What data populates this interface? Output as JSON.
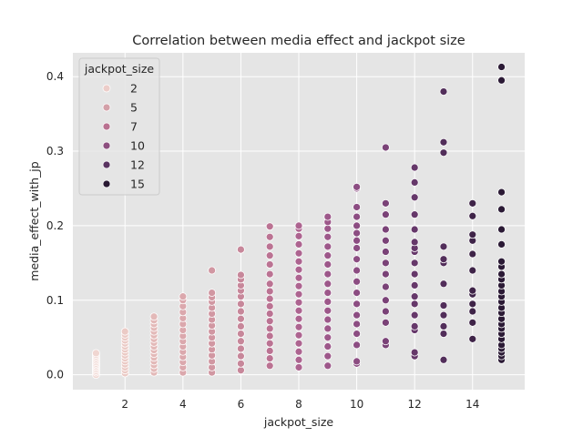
{
  "chart_data": {
    "type": "scatter",
    "title": "Correlation between media effect and jackpot size",
    "xlabel": "jackpot_size",
    "ylabel": "media_effect_with_jp",
    "xlim": [
      0.2,
      15.8
    ],
    "ylim": [
      -0.02,
      0.432
    ],
    "x_ticks": [
      2,
      4,
      6,
      8,
      10,
      12,
      14
    ],
    "y_ticks": [
      0.0,
      0.1,
      0.2,
      0.3,
      0.4
    ],
    "x_tick_labels": [
      "2",
      "4",
      "6",
      "8",
      "10",
      "12",
      "14"
    ],
    "y_tick_labels": [
      "0.0",
      "0.1",
      "0.2",
      "0.3",
      "0.4"
    ],
    "grid": true,
    "legend": {
      "title": "jackpot_size",
      "placement": "top-left",
      "entries": [
        {
          "label": "2",
          "color": "#eccdc9"
        },
        {
          "label": "5",
          "color": "#d3a0a8"
        },
        {
          "label": "7",
          "color": "#b97190"
        },
        {
          "label": "10",
          "color": "#8d4f7f"
        },
        {
          "label": "12",
          "color": "#5a3461"
        },
        {
          "label": "15",
          "color": "#2a1a33"
        }
      ]
    },
    "colors": {
      "1": "#f0d6d1",
      "2": "#ebcac5",
      "3": "#e3b9b8",
      "4": "#dba8ad",
      "5": "#d197a2",
      "6": "#c7879a",
      "7": "#bb7393",
      "8": "#ad6490",
      "9": "#9d588a",
      "10": "#8c4d82",
      "11": "#7a4277",
      "12": "#66386a",
      "13": "#522e5a",
      "14": "#3f2448",
      "15": "#2b1a35"
    },
    "series": [
      {
        "x": 1,
        "values": [
          0.0,
          0.003,
          0.005,
          0.007,
          0.009,
          0.011,
          0.013,
          0.015,
          0.017,
          0.019,
          0.021,
          0.023,
          0.025,
          0.027,
          0.029
        ]
      },
      {
        "x": 2,
        "values": [
          0.002,
          0.006,
          0.01,
          0.014,
          0.018,
          0.022,
          0.026,
          0.03,
          0.034,
          0.038,
          0.042,
          0.046,
          0.05,
          0.054,
          0.058
        ]
      },
      {
        "x": 3,
        "values": [
          0.003,
          0.008,
          0.013,
          0.018,
          0.023,
          0.028,
          0.033,
          0.038,
          0.043,
          0.048,
          0.053,
          0.058,
          0.063,
          0.068,
          0.073,
          0.078
        ]
      },
      {
        "x": 4,
        "values": [
          0.003,
          0.01,
          0.017,
          0.024,
          0.031,
          0.038,
          0.045,
          0.052,
          0.06,
          0.068,
          0.076,
          0.084,
          0.092,
          0.1,
          0.105
        ]
      },
      {
        "x": 5,
        "values": [
          0.003,
          0.01,
          0.018,
          0.026,
          0.034,
          0.042,
          0.05,
          0.058,
          0.066,
          0.074,
          0.082,
          0.09,
          0.098,
          0.104,
          0.11,
          0.14
        ]
      },
      {
        "x": 6,
        "values": [
          0.006,
          0.015,
          0.025,
          0.035,
          0.045,
          0.055,
          0.065,
          0.075,
          0.085,
          0.095,
          0.105,
          0.113,
          0.12,
          0.128,
          0.134,
          0.168
        ]
      },
      {
        "x": 7,
        "values": [
          0.012,
          0.022,
          0.032,
          0.042,
          0.052,
          0.062,
          0.072,
          0.082,
          0.092,
          0.102,
          0.112,
          0.122,
          0.135,
          0.148,
          0.16,
          0.172,
          0.185,
          0.199
        ]
      },
      {
        "x": 8,
        "values": [
          0.01,
          0.02,
          0.031,
          0.042,
          0.053,
          0.064,
          0.075,
          0.086,
          0.097,
          0.108,
          0.119,
          0.13,
          0.141,
          0.152,
          0.163,
          0.175,
          0.186,
          0.196,
          0.2
        ]
      },
      {
        "x": 9,
        "values": [
          0.012,
          0.025,
          0.038,
          0.05,
          0.062,
          0.074,
          0.086,
          0.098,
          0.11,
          0.122,
          0.135,
          0.148,
          0.16,
          0.172,
          0.185,
          0.196,
          0.205,
          0.212
        ]
      },
      {
        "x": 10,
        "values": [
          0.015,
          0.018,
          0.04,
          0.055,
          0.068,
          0.08,
          0.095,
          0.11,
          0.125,
          0.14,
          0.155,
          0.17,
          0.18,
          0.19,
          0.2,
          0.212,
          0.225,
          0.25,
          0.252
        ]
      },
      {
        "x": 11,
        "values": [
          0.04,
          0.045,
          0.07,
          0.085,
          0.1,
          0.118,
          0.135,
          0.15,
          0.165,
          0.18,
          0.195,
          0.215,
          0.23,
          0.305
        ]
      },
      {
        "x": 12,
        "values": [
          0.025,
          0.03,
          0.06,
          0.065,
          0.08,
          0.095,
          0.105,
          0.12,
          0.135,
          0.15,
          0.165,
          0.17,
          0.178,
          0.195,
          0.215,
          0.238,
          0.258,
          0.278
        ]
      },
      {
        "x": 13,
        "values": [
          0.02,
          0.055,
          0.065,
          0.08,
          0.093,
          0.122,
          0.15,
          0.155,
          0.172,
          0.298,
          0.312,
          0.38
        ]
      },
      {
        "x": 14,
        "values": [
          0.048,
          0.07,
          0.085,
          0.095,
          0.108,
          0.113,
          0.14,
          0.162,
          0.18,
          0.188,
          0.213,
          0.23
        ]
      },
      {
        "x": 15,
        "values": [
          0.02,
          0.025,
          0.03,
          0.035,
          0.04,
          0.048,
          0.055,
          0.062,
          0.068,
          0.075,
          0.083,
          0.09,
          0.098,
          0.105,
          0.112,
          0.12,
          0.128,
          0.135,
          0.145,
          0.152,
          0.175,
          0.195,
          0.222,
          0.245,
          0.395,
          0.413
        ]
      }
    ]
  }
}
